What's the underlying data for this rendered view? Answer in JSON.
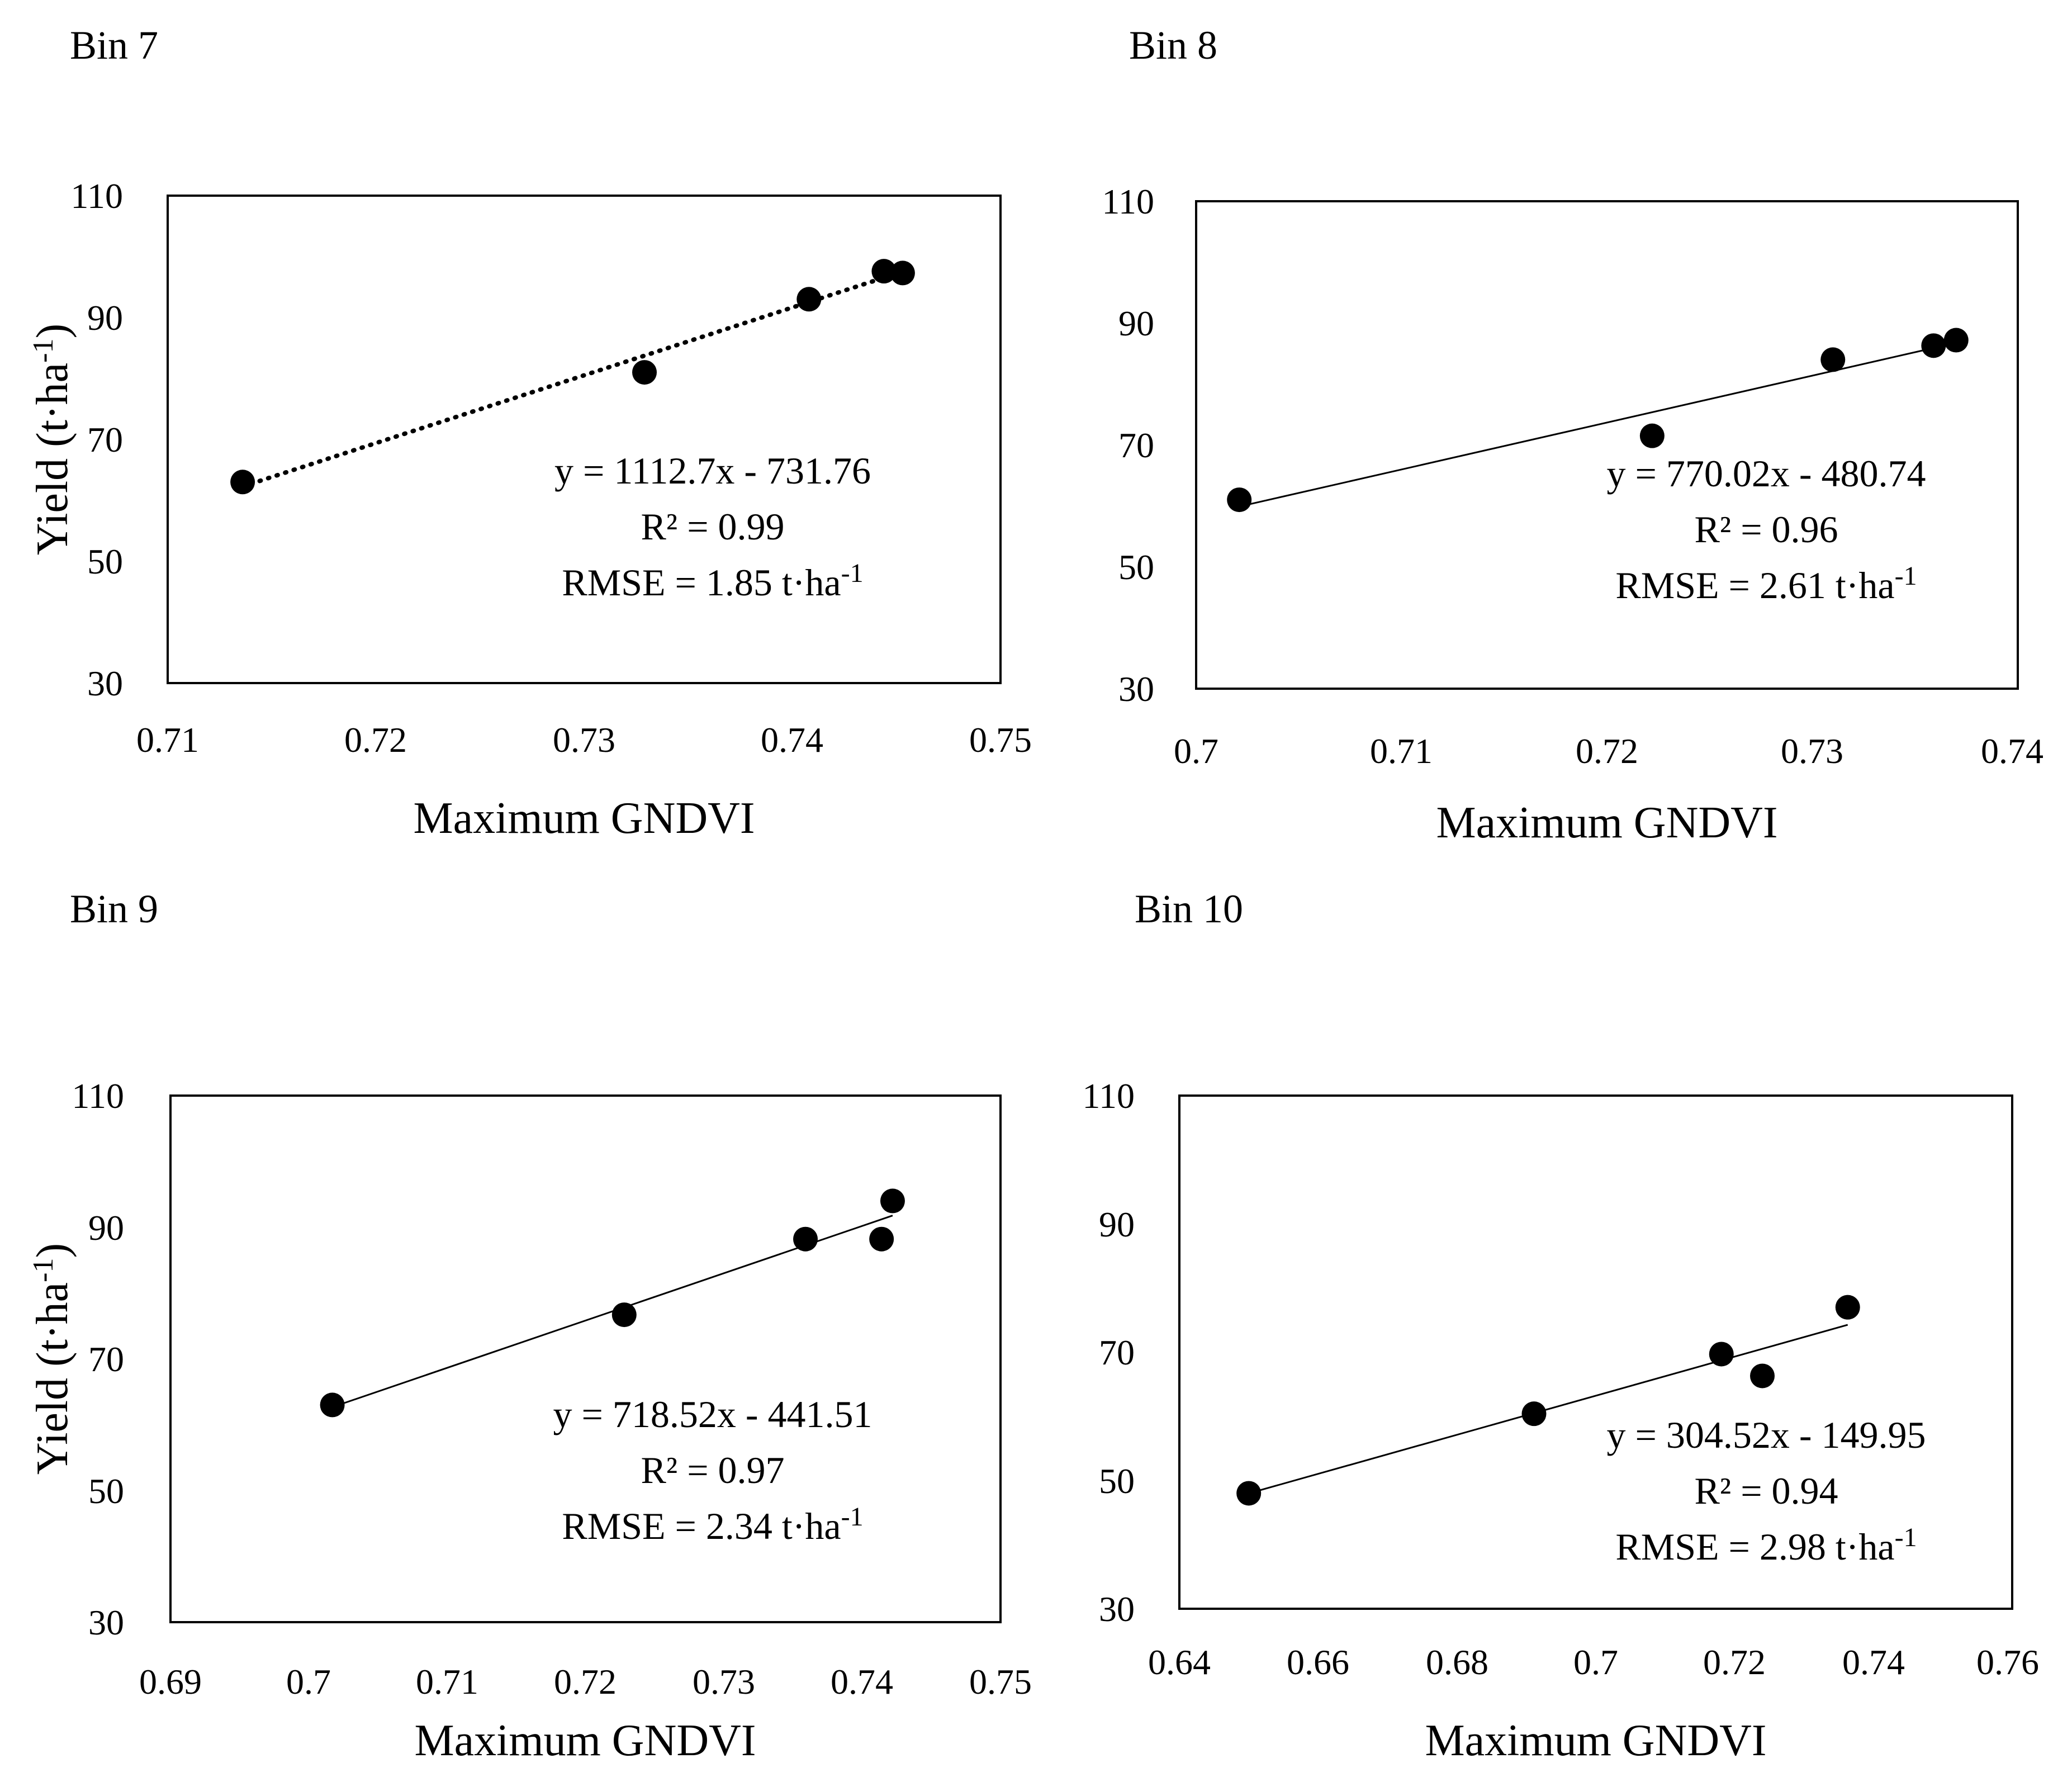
{
  "chart_data": [
    {
      "type": "scatter",
      "panel_title": "Bin 7",
      "xlabel": "Maximum GNDVI",
      "ylabel": "Yield (t·ha",
      "ylabel_sup": "-1",
      "ylabel_close": ")",
      "xlim": [
        0.71,
        0.75
      ],
      "ylim": [
        30,
        110
      ],
      "xticks": [
        "0.71",
        "0.72",
        "0.73",
        "0.74",
        "0.75"
      ],
      "yticks": [
        "30",
        "50",
        "70",
        "90",
        "110"
      ],
      "series": [
        {
          "name": "Yield",
          "x": [
            0.7136,
            0.7329,
            0.7408,
            0.7444,
            0.7453
          ],
          "y": [
            63,
            81,
            93,
            97.6,
            97.3
          ]
        }
      ],
      "trendline": {
        "style": "dotted",
        "slope": 1112.7,
        "intercept": -731.76,
        "x_range": [
          0.7136,
          0.7453
        ]
      },
      "annotations": {
        "equation": "y = 1112.7x - 731.76",
        "r2_label": "R² = 0.99",
        "rmse_prefix": "RMSE = 1.85 t·ha",
        "rmse_sup": "-1"
      }
    },
    {
      "type": "scatter",
      "panel_title": "Bin 8",
      "xlabel": "Maximum GNDVI",
      "ylabel": "",
      "xlim": [
        0.7,
        0.74
      ],
      "ylim": [
        30,
        110
      ],
      "xticks": [
        "0.7",
        "0.71",
        "0.72",
        "0.73",
        "0.74"
      ],
      "yticks": [
        "30",
        "50",
        "70",
        "90",
        "110"
      ],
      "series": [
        {
          "name": "Yield",
          "x": [
            0.7021,
            0.7222,
            0.731,
            0.7359,
            0.737
          ],
          "y": [
            61,
            71.5,
            84,
            86.3,
            87.2
          ]
        }
      ],
      "trendline": {
        "style": "solid",
        "slope": 770.02,
        "intercept": -480.74,
        "x_range": [
          0.7021,
          0.737
        ]
      },
      "annotations": {
        "equation": "y = 770.02x - 480.74",
        "r2_label": "R² = 0.96",
        "rmse_prefix": "RMSE = 2.61 t·ha",
        "rmse_sup": "-1"
      }
    },
    {
      "type": "scatter",
      "panel_title": "Bin 9",
      "xlabel": "Maximum GNDVI",
      "ylabel": "Yield (t·ha",
      "ylabel_sup": "-1",
      "ylabel_close": ")",
      "xlim": [
        0.69,
        0.75
      ],
      "ylim": [
        30,
        110
      ],
      "xticks": [
        "0.69",
        "0.7",
        "0.71",
        "0.72",
        "0.73",
        "0.74",
        "0.75"
      ],
      "yticks": [
        "30",
        "50",
        "70",
        "90",
        "110"
      ],
      "series": [
        {
          "name": "Yield",
          "x": [
            0.7017,
            0.7228,
            0.7359,
            0.7414,
            0.7422
          ],
          "y": [
            63,
            76.7,
            88.2,
            88.2,
            94
          ]
        }
      ],
      "trendline": {
        "style": "solid",
        "slope": 718.52,
        "intercept": -441.51,
        "x_range": [
          0.7017,
          0.7422
        ]
      },
      "annotations": {
        "equation": "y = 718.52x - 441.51",
        "r2_label": "R² = 0.97",
        "rmse_prefix": "RMSE = 2.34 t·ha",
        "rmse_sup": "-1"
      }
    },
    {
      "type": "scatter",
      "panel_title": "Bin 10",
      "xlabel": "Maximum GNDVI",
      "ylabel": "",
      "xlim": [
        0.64,
        0.76
      ],
      "ylim": [
        30,
        110
      ],
      "xticks": [
        "0.64",
        "0.66",
        "0.68",
        "0.7",
        "0.72",
        "0.74",
        "0.76"
      ],
      "yticks": [
        "30",
        "50",
        "70",
        "90",
        "110"
      ],
      "series": [
        {
          "name": "Yield",
          "x": [
            0.65,
            0.6911,
            0.7181,
            0.724,
            0.7363
          ],
          "y": [
            48,
            60.4,
            69.7,
            66.3,
            77
          ]
        }
      ],
      "trendline": {
        "style": "solid",
        "slope": 304.52,
        "intercept": -149.95,
        "x_range": [
          0.65,
          0.7363
        ]
      },
      "annotations": {
        "equation": "y = 304.52x - 149.95",
        "r2_label": "R² = 0.94",
        "rmse_prefix": "RMSE = 2.98 t·ha",
        "rmse_sup": "-1"
      }
    }
  ]
}
